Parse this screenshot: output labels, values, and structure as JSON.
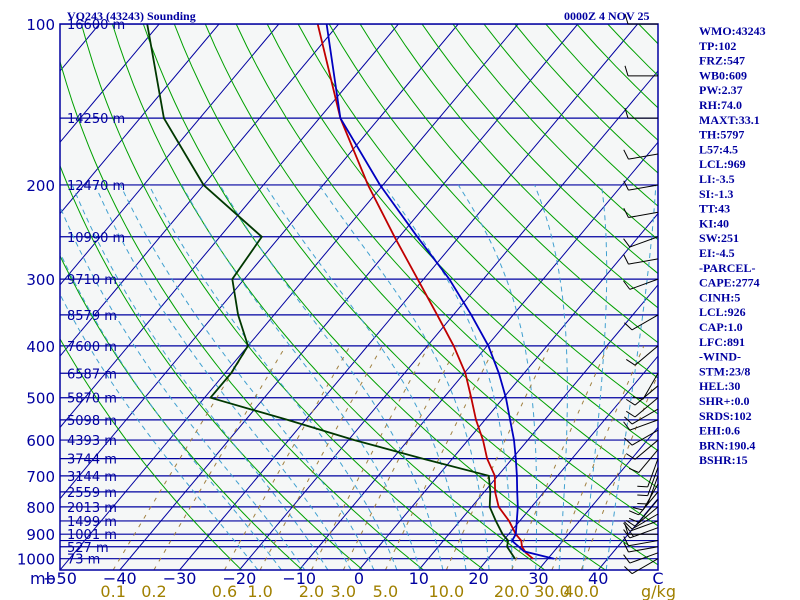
{
  "header": {
    "station_title": "VQ243 (43243) Sounding",
    "date_label": "0000Z  4 NOV 25"
  },
  "indices": [
    "WMO:43243",
    "TP:102",
    "FRZ:547",
    "WB0:609",
    "PW:2.37",
    "RH:74.0",
    "MAXT:33.1",
    "TH:5797",
    "L57:4.5",
    "LCL:969",
    "LI:-3.5",
    "SI:-1.3",
    "TT:43",
    "KI:40",
    "SW:251",
    "EI:-4.5",
    "-PARCEL-",
    "CAPE:2774",
    "CINH:5",
    "LCL:926",
    "CAP:1.0",
    "LFC:891",
    "-WIND-",
    "STM:23/8",
    "HEL:30",
    "SHR+:0.0",
    "SRDS:102",
    "EHI:0.6",
    "BRN:190.4",
    "BSHR:15"
  ],
  "colors": {
    "background": "#f5f7f7",
    "isobar": "#0000a0",
    "isotherm": "#0000a0",
    "dry_adiabat": "#00a000",
    "moist_adiabat": "#40a0d0",
    "mixing_ratio": "#a08040",
    "temperature": "#c00000",
    "dewpoint": "#003800",
    "parcel": "#0000c0",
    "wind": "#000000"
  },
  "chart_data": {
    "type": "skew-t",
    "title": "VQ243 (43243) Sounding",
    "pressure_unit": "mb",
    "temperature_unit": "C",
    "mixing_ratio_unit": "g/kg",
    "pressure_range": [
      1050,
      100
    ],
    "temperature_range": [
      -50,
      50
    ],
    "skew_degrees_per_decade": 75,
    "pressure_ticks": [
      100,
      200,
      300,
      400,
      500,
      600,
      700,
      800,
      900,
      1000
    ],
    "isobars": [
      100,
      150,
      200,
      250,
      300,
      350,
      400,
      450,
      500,
      550,
      600,
      650,
      700,
      750,
      800,
      850,
      900,
      925,
      950,
      1000
    ],
    "heights": [
      {
        "p": 100,
        "label": "16600 m"
      },
      {
        "p": 150,
        "label": "14250 m"
      },
      {
        "p": 200,
        "label": "12470 m"
      },
      {
        "p": 250,
        "label": "10990 m"
      },
      {
        "p": 300,
        "label": "9710 m"
      },
      {
        "p": 350,
        "label": "8579 m"
      },
      {
        "p": 400,
        "label": "7600 m"
      },
      {
        "p": 450,
        "label": "6587 m"
      },
      {
        "p": 500,
        "label": "5870 m"
      },
      {
        "p": 550,
        "label": "5098 m"
      },
      {
        "p": 600,
        "label": "4393 m"
      },
      {
        "p": 650,
        "label": "3744 m"
      },
      {
        "p": 700,
        "label": "3144 m"
      },
      {
        "p": 750,
        "label": "2559 m"
      },
      {
        "p": 800,
        "label": "2013 m"
      },
      {
        "p": 850,
        "label": "1499 m"
      },
      {
        "p": 900,
        "label": "1001 m"
      },
      {
        "p": 950,
        "label": "527 m"
      },
      {
        "p": 1000,
        "label": "73 m"
      }
    ],
    "temperature_ticks": [
      {
        "t": -50,
        "label": "−50"
      },
      {
        "t": -40,
        "label": "−40"
      },
      {
        "t": -30,
        "label": "−30"
      },
      {
        "t": -20,
        "label": "−20"
      },
      {
        "t": -10,
        "label": "−10"
      },
      {
        "t": 0,
        "label": "0"
      },
      {
        "t": 10,
        "label": "10"
      },
      {
        "t": 20,
        "label": "20"
      },
      {
        "t": 30,
        "label": "30"
      },
      {
        "t": 40,
        "label": "40"
      },
      {
        "t": 50,
        "label": "C"
      }
    ],
    "mixing_ratio_ticks": [
      {
        "w": 0.1,
        "label": "0.1"
      },
      {
        "w": 0.2,
        "label": "0.2"
      },
      {
        "w": 0.6,
        "label": "0.6"
      },
      {
        "w": 1.0,
        "label": "1.0"
      },
      {
        "w": 2.0,
        "label": "2.0"
      },
      {
        "w": 3.0,
        "label": "3.0"
      },
      {
        "w": 5.0,
        "label": "5.0"
      },
      {
        "w": 10.0,
        "label": "10.0"
      },
      {
        "w": 20.0,
        "label": "20.0"
      },
      {
        "w": 30.0,
        "label": "30.0"
      },
      {
        "w": 40.0,
        "label": "40.0"
      }
    ],
    "mixing_ratio_unit_label": "g/kg",
    "pressure_unit_label": "mb",
    "series": [
      {
        "name": "Temperature",
        "points": [
          {
            "p": 1000,
            "t": 27.5
          },
          {
            "p": 975,
            "t": 25.5
          },
          {
            "p": 950,
            "t": 24.0
          },
          {
            "p": 925,
            "t": 23.0
          },
          {
            "p": 900,
            "t": 21.2
          },
          {
            "p": 850,
            "t": 18.2
          },
          {
            "p": 800,
            "t": 14.5
          },
          {
            "p": 750,
            "t": 11.8
          },
          {
            "p": 700,
            "t": 9.5
          },
          {
            "p": 650,
            "t": 5.8
          },
          {
            "p": 600,
            "t": 2.5
          },
          {
            "p": 550,
            "t": -1.5
          },
          {
            "p": 500,
            "t": -5.4
          },
          {
            "p": 450,
            "t": -9.8
          },
          {
            "p": 400,
            "t": -15.6
          },
          {
            "p": 350,
            "t": -22.7
          },
          {
            "p": 300,
            "t": -31.0
          },
          {
            "p": 250,
            "t": -40.8
          },
          {
            "p": 200,
            "t": -52.5
          },
          {
            "p": 150,
            "t": -66.5
          },
          {
            "p": 100,
            "t": -83.5
          }
        ]
      },
      {
        "name": "Dewpoint",
        "points": [
          {
            "p": 1000,
            "t": 24.5
          },
          {
            "p": 950,
            "t": 21.5
          },
          {
            "p": 925,
            "t": 20.8
          },
          {
            "p": 900,
            "t": 19.0
          },
          {
            "p": 850,
            "t": 16.0
          },
          {
            "p": 800,
            "t": 13.0
          },
          {
            "p": 750,
            "t": 11.0
          },
          {
            "p": 700,
            "t": 8.5
          },
          {
            "p": 650,
            "t": -5.0
          },
          {
            "p": 600,
            "t": -19.0
          },
          {
            "p": 550,
            "t": -33.0
          },
          {
            "p": 500,
            "t": -49.0
          },
          {
            "p": 450,
            "t": -49.0
          },
          {
            "p": 400,
            "t": -50.0
          },
          {
            "p": 350,
            "t": -56.0
          },
          {
            "p": 300,
            "t": -62.0
          },
          {
            "p": 250,
            "t": -63.0
          },
          {
            "p": 200,
            "t": -80.0
          },
          {
            "p": 150,
            "t": -96.0
          },
          {
            "p": 100,
            "t": -112.0
          }
        ]
      },
      {
        "name": "Parcel",
        "points": [
          {
            "p": 1000,
            "t": 31.0
          },
          {
            "p": 969,
            "t": 25.0
          },
          {
            "p": 926,
            "t": 21.5
          },
          {
            "p": 900,
            "t": 21.2
          },
          {
            "p": 850,
            "t": 19.5
          },
          {
            "p": 800,
            "t": 17.7
          },
          {
            "p": 750,
            "t": 15.5
          },
          {
            "p": 700,
            "t": 13.2
          },
          {
            "p": 650,
            "t": 10.6
          },
          {
            "p": 600,
            "t": 7.7
          },
          {
            "p": 550,
            "t": 4.2
          },
          {
            "p": 500,
            "t": 0.4
          },
          {
            "p": 450,
            "t": -4.2
          },
          {
            "p": 400,
            "t": -9.8
          },
          {
            "p": 350,
            "t": -17.0
          },
          {
            "p": 300,
            "t": -25.7
          },
          {
            "p": 250,
            "t": -37.0
          },
          {
            "p": 200,
            "t": -50.5
          },
          {
            "p": 150,
            "t": -66.5
          },
          {
            "p": 100,
            "t": -82.0
          }
        ]
      }
    ],
    "wind_barbs": [
      {
        "p": 1000,
        "dir": 240,
        "kt": 10
      },
      {
        "p": 975,
        "dir": 250,
        "kt": 10
      },
      {
        "p": 950,
        "dir": 260,
        "kt": 10
      },
      {
        "p": 925,
        "dir": 260,
        "kt": 10
      },
      {
        "p": 900,
        "dir": 270,
        "kt": 10
      },
      {
        "p": 875,
        "dir": 250,
        "kt": 5
      },
      {
        "p": 850,
        "dir": 250,
        "kt": 10
      },
      {
        "p": 825,
        "dir": 240,
        "kt": 10
      },
      {
        "p": 800,
        "dir": 230,
        "kt": 10
      },
      {
        "p": 775,
        "dir": 220,
        "kt": 10
      },
      {
        "p": 750,
        "dir": 220,
        "kt": 10
      },
      {
        "p": 725,
        "dir": 210,
        "kt": 10
      },
      {
        "p": 700,
        "dir": 200,
        "kt": 10
      },
      {
        "p": 675,
        "dir": 200,
        "kt": 10
      },
      {
        "p": 650,
        "dir": 200,
        "kt": 10
      },
      {
        "p": 625,
        "dir": 220,
        "kt": 10
      },
      {
        "p": 600,
        "dir": 230,
        "kt": 10
      },
      {
        "p": 575,
        "dir": 240,
        "kt": 10
      },
      {
        "p": 550,
        "dir": 250,
        "kt": 10
      },
      {
        "p": 525,
        "dir": 240,
        "kt": 10
      },
      {
        "p": 500,
        "dir": 230,
        "kt": 10
      },
      {
        "p": 475,
        "dir": 230,
        "kt": 10
      },
      {
        "p": 450,
        "dir": 210,
        "kt": 10
      },
      {
        "p": 400,
        "dir": 230,
        "kt": 10
      },
      {
        "p": 350,
        "dir": 240,
        "kt": 10
      },
      {
        "p": 300,
        "dir": 250,
        "kt": 10
      },
      {
        "p": 275,
        "dir": 260,
        "kt": 10
      },
      {
        "p": 250,
        "dir": 250,
        "kt": 10
      },
      {
        "p": 225,
        "dir": 260,
        "kt": 10
      },
      {
        "p": 200,
        "dir": 260,
        "kt": 10
      },
      {
        "p": 175,
        "dir": 260,
        "kt": 10
      },
      {
        "p": 150,
        "dir": 270,
        "kt": 10
      },
      {
        "p": 125,
        "dir": 270,
        "kt": 10
      },
      {
        "p": 100,
        "dir": 270,
        "kt": 10
      }
    ]
  }
}
